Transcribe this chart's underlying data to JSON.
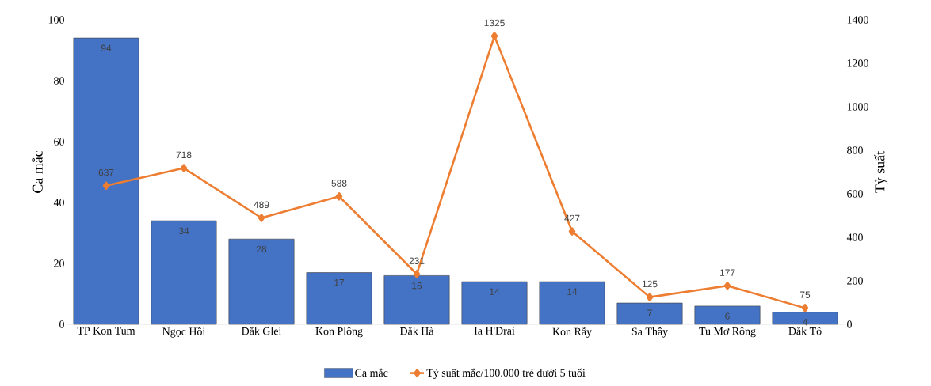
{
  "chart_data": {
    "type": "bar",
    "ylabel": "Ca mắc",
    "y2label": "Tỷ suất",
    "categories": [
      "TP Kon Tum",
      "Ngọc Hồi",
      "Đăk Glei",
      "Kon Plông",
      "Đăk Hà",
      "Ia H'Drai",
      "Kon Rẫy",
      "Sa Thầy",
      "Tu Mơ Rông",
      "Đăk Tô"
    ],
    "series": [
      {
        "name": "Ca mắc",
        "color": "#4472c4",
        "values": [
          94,
          34,
          28,
          17,
          16,
          14,
          14,
          7,
          6,
          4
        ]
      },
      {
        "name": "Tỷ suất mắc/100.000 trẻ dưới 5 tuổi",
        "type": "line",
        "axis": "y2",
        "color": "#ed7d31",
        "marker": "diamond",
        "line_style": "solid",
        "values": [
          637,
          718,
          489,
          588,
          231,
          1325,
          427,
          125,
          177,
          75
        ]
      }
    ],
    "ylim": [
      0,
      100
    ],
    "yticks": [
      0,
      20,
      40,
      60,
      80,
      100
    ],
    "y2lim": [
      0,
      1400
    ],
    "y2ticks": [
      0,
      200,
      400,
      600,
      800,
      1000,
      1200,
      1400
    ],
    "data_labels": true,
    "legend": "bottom"
  }
}
